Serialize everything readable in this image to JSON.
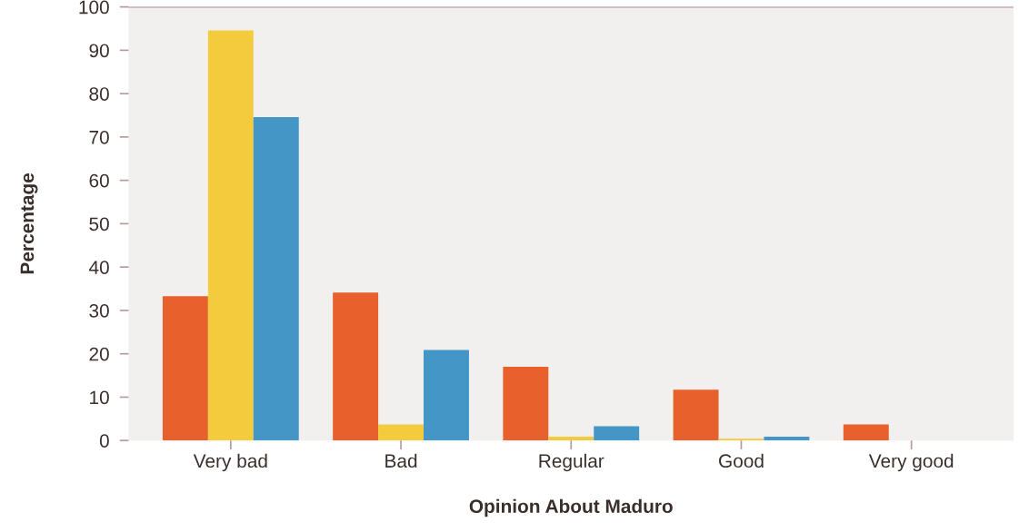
{
  "chart_data": {
    "type": "bar",
    "xlabel": "Opinion About Maduro",
    "ylabel": "Percentage",
    "categories": [
      "Very bad",
      "Bad",
      "Regular",
      "Good",
      "Very good"
    ],
    "series": [
      {
        "color": "#e8602c",
        "values": [
          33.3,
          34.1,
          17,
          11.7,
          3.7
        ]
      },
      {
        "color": "#f4cb3c",
        "values": [
          94.6,
          3.7,
          0.9,
          0.4,
          0
        ]
      },
      {
        "color": "#4496c6",
        "values": [
          74.6,
          20.9,
          3.3,
          0.9,
          0
        ]
      }
    ],
    "ylim": [
      0,
      100
    ],
    "yticks": [
      0,
      10,
      20,
      30,
      40,
      50,
      60,
      70,
      80,
      90,
      100
    ],
    "ref_lines": [
      {
        "axis": "y",
        "value": 100,
        "color": "#b08a8a"
      }
    ],
    "grid": false,
    "legend": false
  }
}
